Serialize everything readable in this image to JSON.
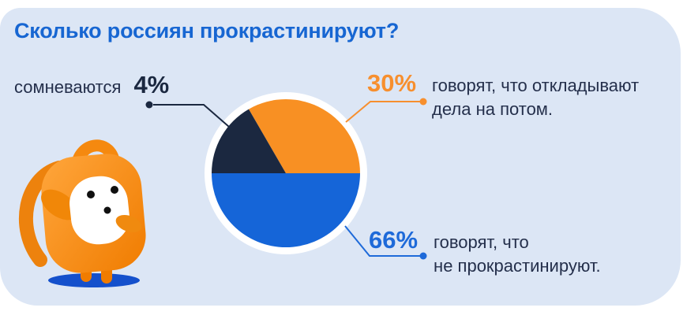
{
  "title": "Сколько россиян прокрастинируют?",
  "colors": {
    "card_bg": "#DCE6F5",
    "title_blue": "#1766D2",
    "body_text": "#242F4B",
    "pie_orange": "#F89023",
    "pie_navy": "#1B2840",
    "pie_blue": "#1565D8",
    "pct_orange": "#F78F2E",
    "pct_blue": "#1E6AD9",
    "mascot_orange": "#F68B1F",
    "mascot_shadow_blue": "#1450CC"
  },
  "callouts": {
    "doubt": {
      "label": "сомневаются",
      "pct": "4%"
    },
    "postpone": {
      "pct": "30%",
      "line1": "говорят, что откладывают",
      "line2": "дела на потом."
    },
    "not_procrastinate": {
      "pct": "66%",
      "line1": "говорят, что",
      "line2": "не прокрастинируют."
    }
  },
  "chart_data": {
    "type": "pie",
    "title": "Сколько россиян прокрастинируют?",
    "legend_position": "callouts",
    "segments": [
      {
        "label": "говорят, что откладывают дела на потом.",
        "value_pct": 30,
        "color": "#F89023",
        "visual_from_deg": 0,
        "visual_to_deg": 120
      },
      {
        "label": "сомневаются",
        "value_pct": 4,
        "color": "#1B2840",
        "visual_from_deg": 120,
        "visual_to_deg": 180
      },
      {
        "label": "говорят, что не прокрастинируют.",
        "value_pct": 66,
        "color": "#1565D8",
        "visual_from_deg": 180,
        "visual_to_deg": 360
      }
    ]
  }
}
